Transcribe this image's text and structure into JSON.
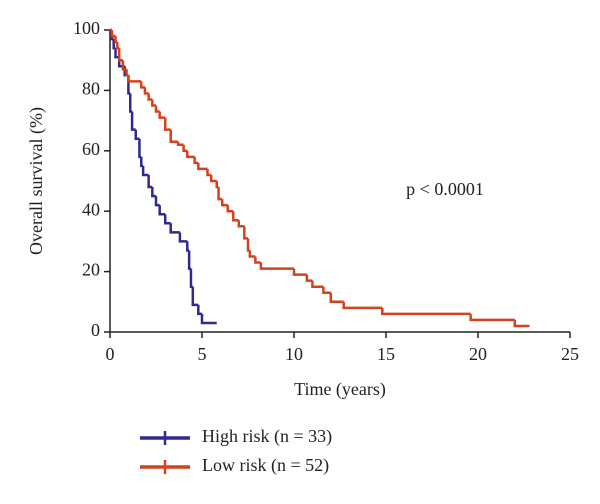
{
  "chart_data": {
    "type": "step",
    "xlabel": "Time (years)",
    "ylabel": "Overall survival (%)",
    "annotation": "p < 0.0001",
    "xlim": [
      0,
      25
    ],
    "xticks": [
      0,
      5,
      10,
      15,
      20,
      25
    ],
    "ylim": [
      0,
      100
    ],
    "yticks": [
      0,
      20,
      40,
      60,
      80,
      100
    ],
    "series": [
      {
        "name": "High risk (n = 33)",
        "color": "#2f2a8c",
        "x": [
          0,
          0.1,
          0.2,
          0.3,
          0.5,
          0.8,
          1.0,
          1.1,
          1.2,
          1.4,
          1.6,
          1.7,
          1.8,
          2.1,
          2.3,
          2.5,
          2.7,
          3.0,
          3.3,
          3.8,
          4.2,
          4.3,
          4.4,
          4.5,
          4.8,
          5.0,
          5.8
        ],
        "values": [
          100,
          97,
          94,
          91,
          88,
          85,
          79,
          73,
          67,
          64,
          58,
          55,
          52,
          48,
          45,
          42,
          39,
          36,
          33,
          30,
          27,
          21,
          15,
          9,
          6,
          3,
          3
        ]
      },
      {
        "name": "Low risk (n = 52)",
        "color": "#d2421e",
        "x": [
          0,
          0.1,
          0.3,
          0.4,
          0.5,
          0.7,
          0.9,
          1.0,
          1.7,
          1.9,
          2.1,
          2.3,
          2.5,
          2.7,
          3.0,
          3.3,
          3.7,
          4.0,
          4.2,
          4.6,
          4.8,
          5.3,
          5.5,
          5.8,
          5.9,
          6.1,
          6.4,
          6.7,
          7.0,
          7.3,
          7.5,
          7.6,
          7.9,
          8.2,
          10.0,
          10.7,
          11.0,
          11.6,
          12.0,
          12.7,
          14.8,
          19.6,
          22.0,
          22.8
        ],
        "values": [
          100,
          98,
          96,
          94,
          90,
          87,
          85,
          83,
          81,
          79,
          77,
          75,
          73,
          71,
          67,
          63,
          62,
          60,
          58,
          56,
          54,
          52,
          50,
          48,
          44,
          42,
          40,
          37,
          35,
          31,
          27,
          25,
          23,
          21,
          19,
          17,
          15,
          13,
          10,
          8,
          6,
          4,
          2,
          2
        ]
      }
    ]
  }
}
